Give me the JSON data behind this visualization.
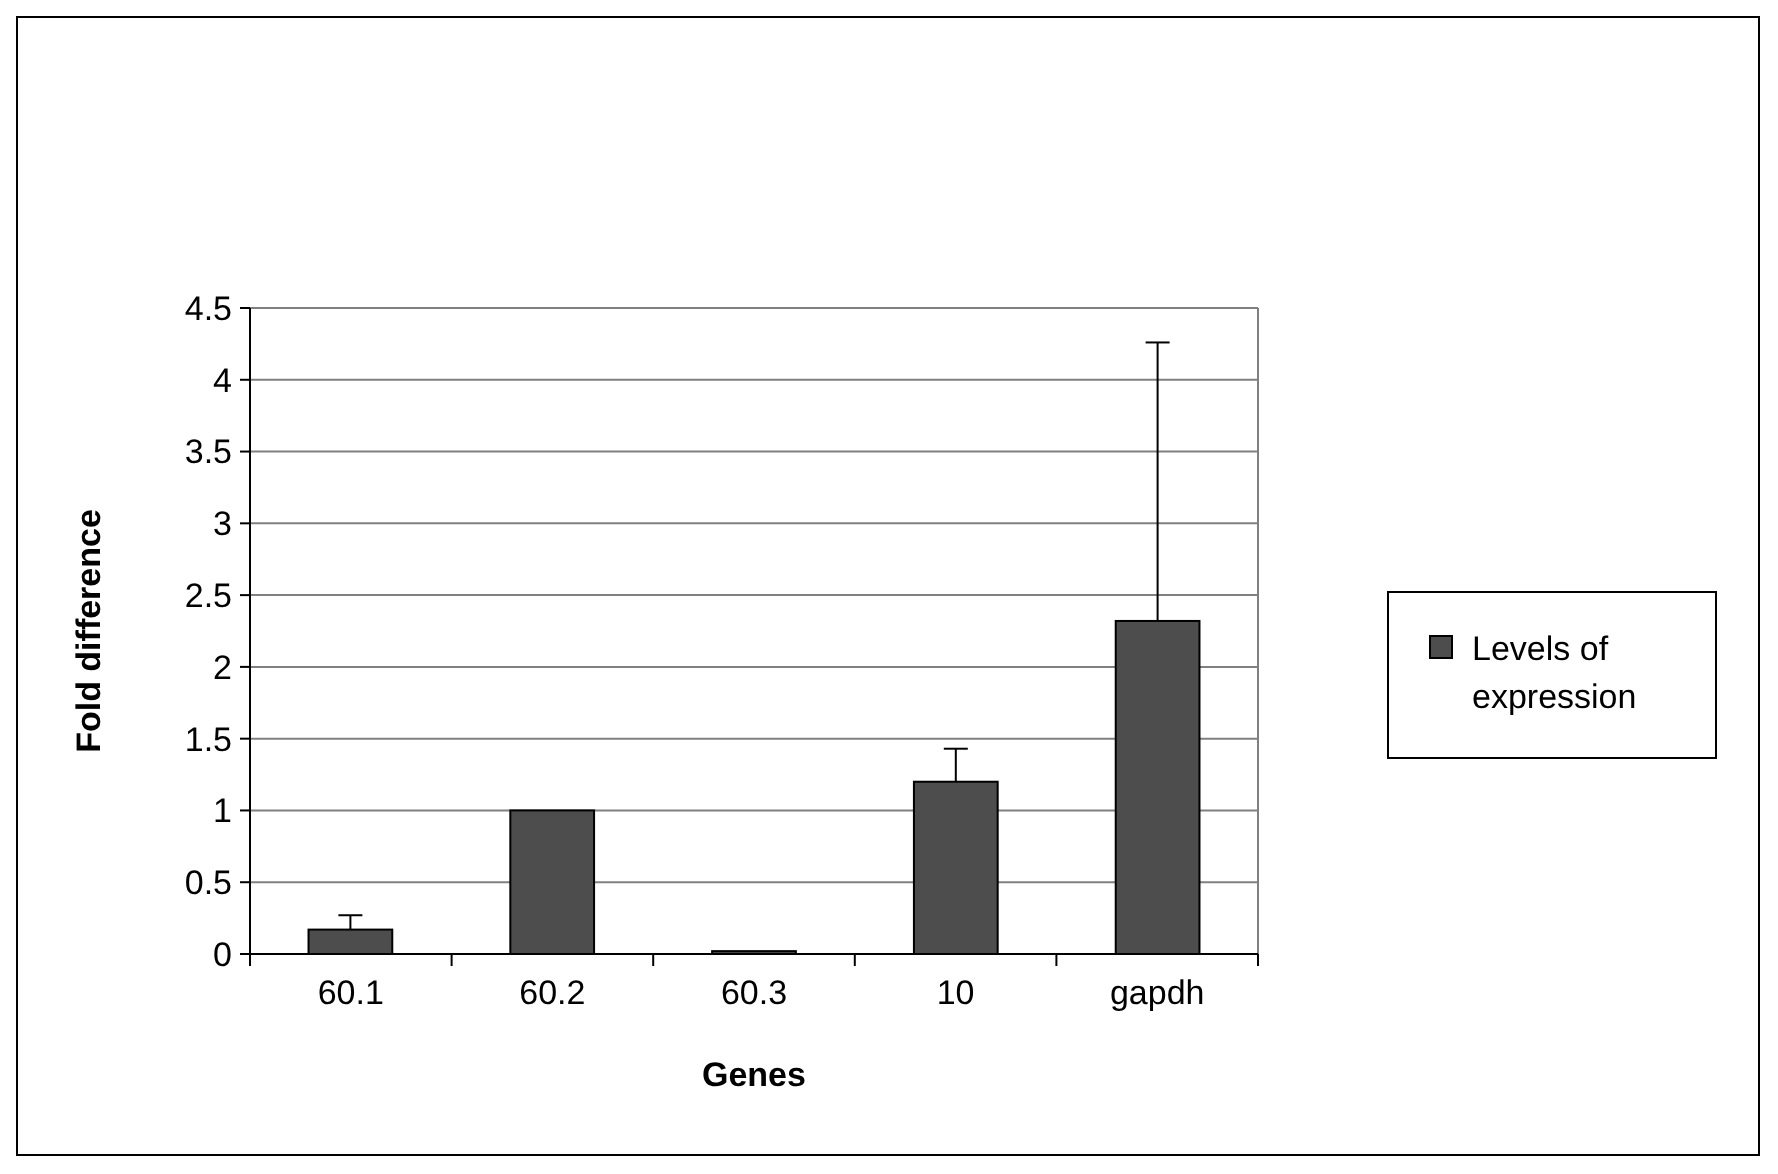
{
  "chart_data": {
    "type": "bar",
    "xlabel": "Genes",
    "ylabel": "Fold difference",
    "categories": [
      "60.1",
      "60.2",
      "60.3",
      "10",
      "gapdh"
    ],
    "series": [
      {
        "name": "Levels of expression",
        "color": "#4d4d4d",
        "values": [
          0.17,
          1.0,
          0.02,
          1.2,
          2.32
        ],
        "errors": [
          [
            0.17,
            0.27
          ],
          null,
          null,
          [
            1.2,
            1.43
          ],
          [
            2.32,
            4.26
          ]
        ]
      }
    ],
    "ylim": [
      0,
      4.5
    ],
    "yticks": [
      0,
      0.5,
      1,
      1.5,
      2,
      2.5,
      3,
      3.5,
      4,
      4.5
    ],
    "grid": "y",
    "legend": "right"
  }
}
